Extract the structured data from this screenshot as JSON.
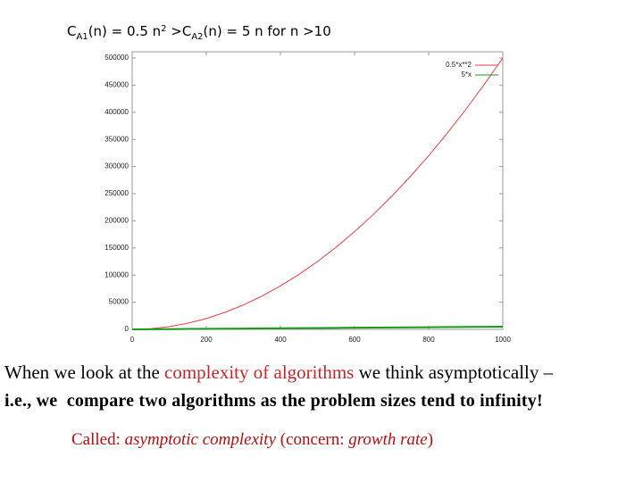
{
  "title_parts": [
    "C",
    "A1",
    "(n) = 0.5 n",
    "2",
    " >C",
    "A2",
    "(n) = 5 n for n >10"
  ],
  "chart_data": {
    "type": "line",
    "x": [
      0,
      50,
      100,
      150,
      200,
      250,
      300,
      350,
      400,
      450,
      500,
      550,
      600,
      650,
      700,
      750,
      800,
      850,
      900,
      950,
      1000
    ],
    "series": [
      {
        "name": "0.5*x**2",
        "color": "#e0404a",
        "values": [
          0,
          1250,
          5000,
          11250,
          20000,
          31250,
          45000,
          61250,
          80000,
          101250,
          125000,
          151250,
          180000,
          211250,
          245000,
          281250,
          320000,
          361250,
          405000,
          451250,
          500000
        ]
      },
      {
        "name": "5*x",
        "color": "#1a9a1a",
        "values": [
          0,
          250,
          500,
          750,
          1000,
          1250,
          1500,
          1750,
          2000,
          2250,
          2500,
          2750,
          3000,
          3250,
          3500,
          3750,
          4000,
          4250,
          4500,
          4750,
          5000
        ]
      }
    ],
    "xlim": [
      0,
      1000
    ],
    "xticks": [
      0,
      200,
      400,
      600,
      800,
      1000
    ],
    "ylim": [
      0,
      500000
    ],
    "yticks": [
      0,
      50000,
      100000,
      150000,
      200000,
      250000,
      300000,
      350000,
      400000,
      450000,
      500000
    ],
    "legend": "upper right"
  },
  "text": {
    "line1": [
      "When we look at the ",
      "complexity of algorithms",
      " we think asymptotically –"
    ],
    "line2": "i.e., we  compare two algorithms as the problem sizes tend to infinity!",
    "line3": [
      "Called: ",
      "asymptotic complexity",
      " (concern: ",
      "growth rate",
      ")"
    ]
  }
}
